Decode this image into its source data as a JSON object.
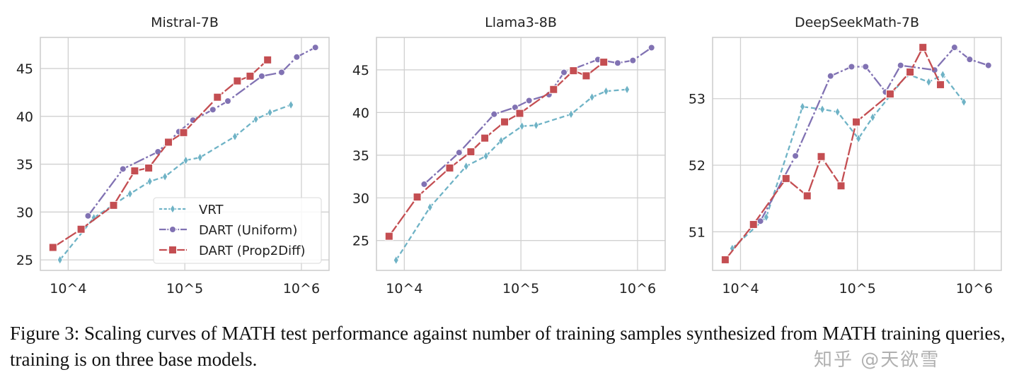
{
  "caption": "Figure 3: Scaling curves of MATH test performance against number of training samples synthesized from MATH training queries, training is on three base models.",
  "watermark": "知乎 @天欲雪",
  "chart_data": [
    {
      "type": "line",
      "title": "Mistral-7B",
      "xscale": "log",
      "xlim": [
        5770,
        1726000
      ],
      "ylim": [
        23.9,
        48.25
      ],
      "xticks": [
        10000,
        100000,
        1000000
      ],
      "xtick_labels": [
        "10^4",
        "10^5",
        "10^6"
      ],
      "yticks": [
        25,
        30,
        35,
        40,
        45
      ],
      "grid": true,
      "legend": "lower-right",
      "series": [
        {
          "name": "VRT",
          "color": "#6fb3c6",
          "marker": "diamond",
          "dash": "7,4",
          "x": [
            8500,
            16600,
            33900,
            50100,
            67600,
            102000,
            135000,
            269000,
            407000,
            537000,
            813000
          ],
          "y": [
            25.0,
            29.4,
            31.9,
            33.2,
            33.7,
            35.4,
            35.7,
            37.9,
            39.7,
            40.4,
            41.2
          ]
        },
        {
          "name": "DART (Uniform)",
          "color": "#8172b3",
          "marker": "circle",
          "dash": "16,3,3,3",
          "x": [
            14800,
            29500,
            58900,
            89100,
            117500,
            174000,
            234000,
            457000,
            676000,
            912000,
            1318000
          ],
          "y": [
            29.6,
            34.5,
            36.3,
            38.4,
            39.6,
            40.7,
            41.6,
            44.2,
            44.6,
            46.2,
            47.2
          ]
        },
        {
          "name": "DART (Prop2Diff)",
          "color": "#c44e52",
          "marker": "square",
          "dash": "18,3",
          "x": [
            7400,
            12900,
            24500,
            37200,
            49000,
            72400,
            97700,
            190500,
            282000,
            363000,
            513000
          ],
          "y": [
            26.3,
            28.2,
            30.7,
            34.3,
            34.6,
            37.3,
            38.3,
            42.0,
            43.7,
            44.2,
            45.9
          ]
        }
      ]
    },
    {
      "type": "line",
      "title": "Llama3-8B",
      "xscale": "log",
      "xlim": [
        5770,
        1726000
      ],
      "ylim": [
        21.5,
        48.8
      ],
      "xticks": [
        10000,
        100000,
        1000000
      ],
      "xtick_labels": [
        "10^4",
        "10^5",
        "10^6"
      ],
      "yticks": [
        25,
        30,
        35,
        40,
        45
      ],
      "grid": true,
      "series": [
        {
          "name": "VRT",
          "color": "#6fb3c6",
          "marker": "diamond",
          "dash": "7,4",
          "x": [
            8500,
            16600,
            33900,
            50100,
            67600,
            102000,
            135000,
            269000,
            407000,
            537000,
            813000
          ],
          "y": [
            22.7,
            28.9,
            33.7,
            34.9,
            36.7,
            38.4,
            38.5,
            39.8,
            41.8,
            42.5,
            42.7
          ]
        },
        {
          "name": "DART (Uniform)",
          "color": "#8172b3",
          "marker": "circle",
          "dash": "16,3,3,3",
          "x": [
            14800,
            29500,
            58900,
            89100,
            117500,
            174000,
            234000,
            457000,
            676000,
            912000,
            1318000
          ],
          "y": [
            31.6,
            35.3,
            39.8,
            40.6,
            41.4,
            42.1,
            44.7,
            46.2,
            45.8,
            46.1,
            47.6
          ]
        },
        {
          "name": "DART (Prop2Diff)",
          "color": "#c44e52",
          "marker": "square",
          "dash": "18,3",
          "x": [
            7400,
            12900,
            24500,
            37200,
            49000,
            72400,
            97700,
            190500,
            282000,
            363000,
            513000
          ],
          "y": [
            25.5,
            30.1,
            33.5,
            35.4,
            37.0,
            38.9,
            39.9,
            42.7,
            44.9,
            44.3,
            45.9
          ]
        }
      ]
    },
    {
      "type": "line",
      "title": "DeepSeekMath-7B",
      "xscale": "log",
      "xlim": [
        5770,
        1700000
      ],
      "ylim": [
        50.42,
        53.92
      ],
      "xticks": [
        10000,
        100000,
        1000000
      ],
      "xtick_labels": [
        "10^4",
        "10^5",
        "10^6"
      ],
      "yticks": [
        51,
        52,
        53
      ],
      "grid": true,
      "series": [
        {
          "name": "VRT",
          "color": "#6fb3c6",
          "marker": "diamond",
          "dash": "7,4",
          "x": [
            8500,
            16600,
            33900,
            50100,
            67600,
            102000,
            135000,
            269000,
            407000,
            537000,
            813000
          ],
          "y": [
            50.75,
            51.22,
            52.88,
            52.84,
            52.8,
            52.4,
            52.72,
            53.37,
            53.25,
            53.36,
            52.95
          ]
        },
        {
          "name": "DART (Uniform)",
          "color": "#8172b3",
          "marker": "circle",
          "dash": "16,3,3,3",
          "x": [
            14800,
            29500,
            58900,
            89100,
            117500,
            174000,
            234000,
            457000,
            676000,
            912000,
            1318000
          ],
          "y": [
            51.16,
            52.14,
            53.34,
            53.48,
            53.48,
            53.1,
            53.5,
            53.43,
            53.77,
            53.59,
            53.5
          ]
        },
        {
          "name": "DART (Prop2Diff)",
          "color": "#c44e52",
          "marker": "square",
          "dash": "18,3",
          "x": [
            7400,
            12900,
            24500,
            37200,
            49000,
            72400,
            97700,
            190500,
            282000,
            363000,
            513000
          ],
          "y": [
            50.58,
            51.11,
            51.8,
            51.54,
            52.13,
            51.69,
            52.65,
            53.07,
            53.4,
            53.77,
            53.21
          ]
        }
      ]
    }
  ]
}
